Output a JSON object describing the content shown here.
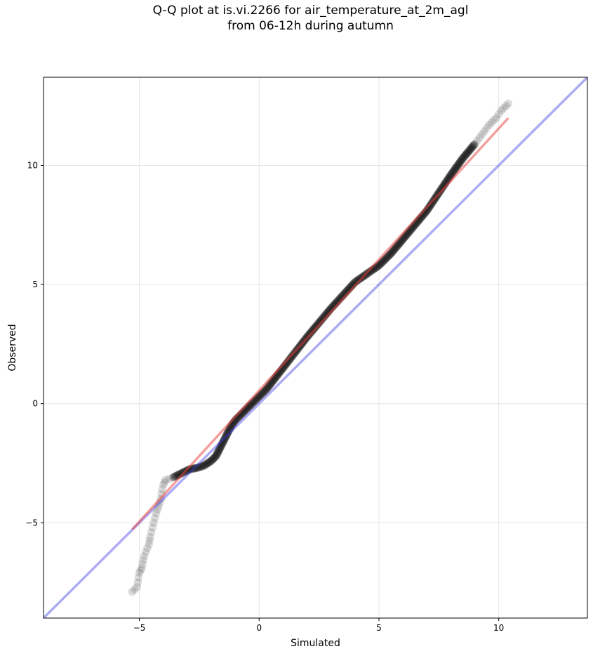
{
  "chart_data": {
    "type": "scatter",
    "title": "Q-Q plot at is.vi.2266 for air_temperature_at_2m_agl",
    "subtitle": "from 06-12h during autumn",
    "xlabel": "Simulated",
    "ylabel": "Observed",
    "xlim": [
      -9.0,
      13.7
    ],
    "ylim": [
      -9.0,
      13.7
    ],
    "x_ticks": [
      -5,
      0,
      5,
      10
    ],
    "y_ticks": [
      -5,
      0,
      5,
      10
    ],
    "x_tick_labels": [
      "−5",
      "0",
      "5",
      "10"
    ],
    "y_tick_labels": [
      "−5",
      "0",
      "5",
      "10"
    ],
    "grid": true,
    "colors": {
      "points": "#000000",
      "fit_line": "#e8403c",
      "reference_line": "#3a3ae8"
    },
    "quantile_key_points": [
      [
        -5.3,
        -7.9
      ],
      [
        -5.1,
        -7.7
      ],
      [
        -5.0,
        -7.1
      ],
      [
        -4.9,
        -6.9
      ],
      [
        -4.8,
        -6.4
      ],
      [
        -4.6,
        -5.9
      ],
      [
        -4.55,
        -5.6
      ],
      [
        -4.4,
        -5.0
      ],
      [
        -4.3,
        -4.6
      ],
      [
        -4.2,
        -4.3
      ],
      [
        -4.1,
        -4.0
      ],
      [
        -4.05,
        -3.6
      ],
      [
        -4.0,
        -3.4
      ],
      [
        -3.9,
        -3.2
      ],
      [
        -3.6,
        -3.1
      ],
      [
        -3.2,
        -2.9
      ],
      [
        -2.9,
        -2.75
      ],
      [
        -2.6,
        -2.7
      ],
      [
        -2.3,
        -2.6
      ],
      [
        -2.0,
        -2.4
      ],
      [
        -1.8,
        -2.2
      ],
      [
        -1.6,
        -1.8
      ],
      [
        -1.4,
        -1.4
      ],
      [
        -1.2,
        -1.0
      ],
      [
        -1.0,
        -0.7
      ],
      [
        -0.6,
        -0.3
      ],
      [
        -0.2,
        0.1
      ],
      [
        0.3,
        0.6
      ],
      [
        1.0,
        1.5
      ],
      [
        2.0,
        2.8
      ],
      [
        3.0,
        4.0
      ],
      [
        4.0,
        5.1
      ],
      [
        5.0,
        5.8
      ],
      [
        5.5,
        6.3
      ],
      [
        6.0,
        6.9
      ],
      [
        7.0,
        8.1
      ],
      [
        8.0,
        9.6
      ],
      [
        8.5,
        10.3
      ],
      [
        9.0,
        10.9
      ],
      [
        9.3,
        11.3
      ],
      [
        9.6,
        11.7
      ],
      [
        9.9,
        12.0
      ],
      [
        10.1,
        12.3
      ],
      [
        10.4,
        12.6
      ]
    ],
    "fit_line": {
      "x_range": [
        -5.3,
        10.4
      ],
      "slope": 1.1,
      "intercept": 0.55
    },
    "reference_line": {
      "slope": 1,
      "intercept": 0
    }
  }
}
